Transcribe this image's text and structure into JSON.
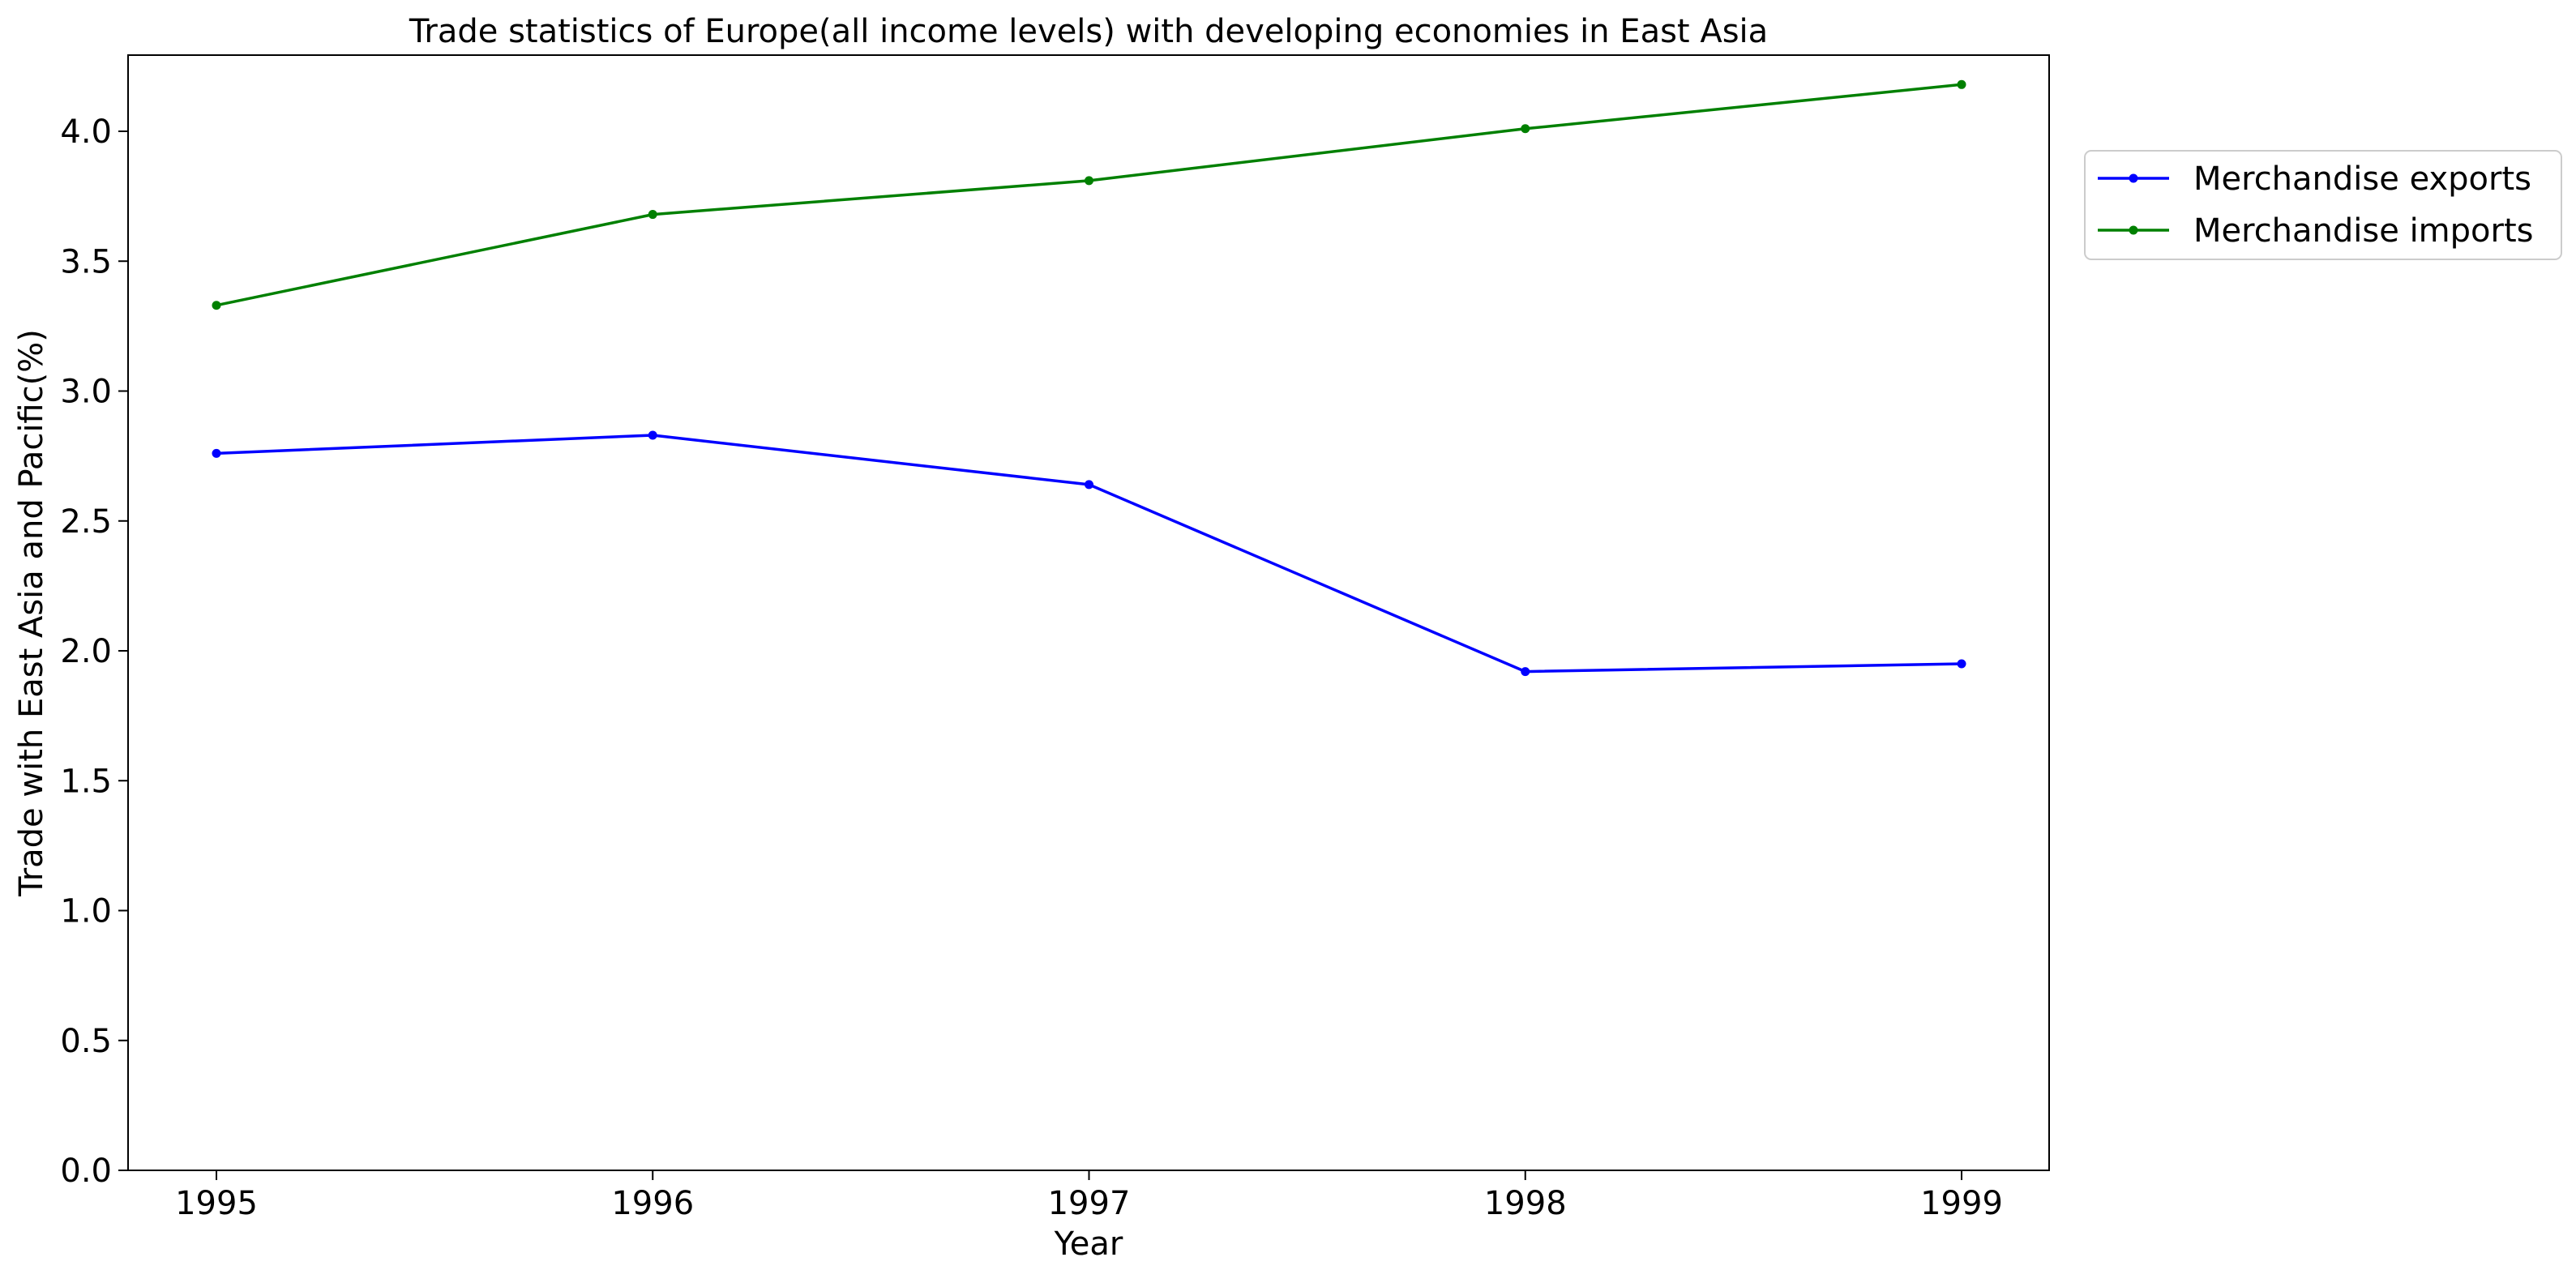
{
  "chart_data": {
    "type": "line",
    "title": "Trade statistics of Europe(all income levels) with developing economies in East Asia",
    "xlabel": "Year",
    "ylabel": "Trade with East Asia and Pacific(%)",
    "x": [
      "1995",
      "1996",
      "1997",
      "1998",
      "1999"
    ],
    "ylim": [
      0,
      4.3
    ],
    "yticks": [
      "0.0",
      "0.5",
      "1.0",
      "1.5",
      "2.0",
      "2.5",
      "3.0",
      "3.5",
      "4.0"
    ],
    "grid": false,
    "legend_position": "outside-top-right",
    "series": [
      {
        "name": "Merchandise exports",
        "color": "#0000ff",
        "marker": "dot",
        "values": [
          2.76,
          2.83,
          2.64,
          1.92,
          1.95
        ]
      },
      {
        "name": "Merchandise imports",
        "color": "#008000",
        "marker": "dot",
        "values": [
          3.33,
          3.68,
          3.81,
          4.01,
          4.18
        ]
      }
    ]
  }
}
